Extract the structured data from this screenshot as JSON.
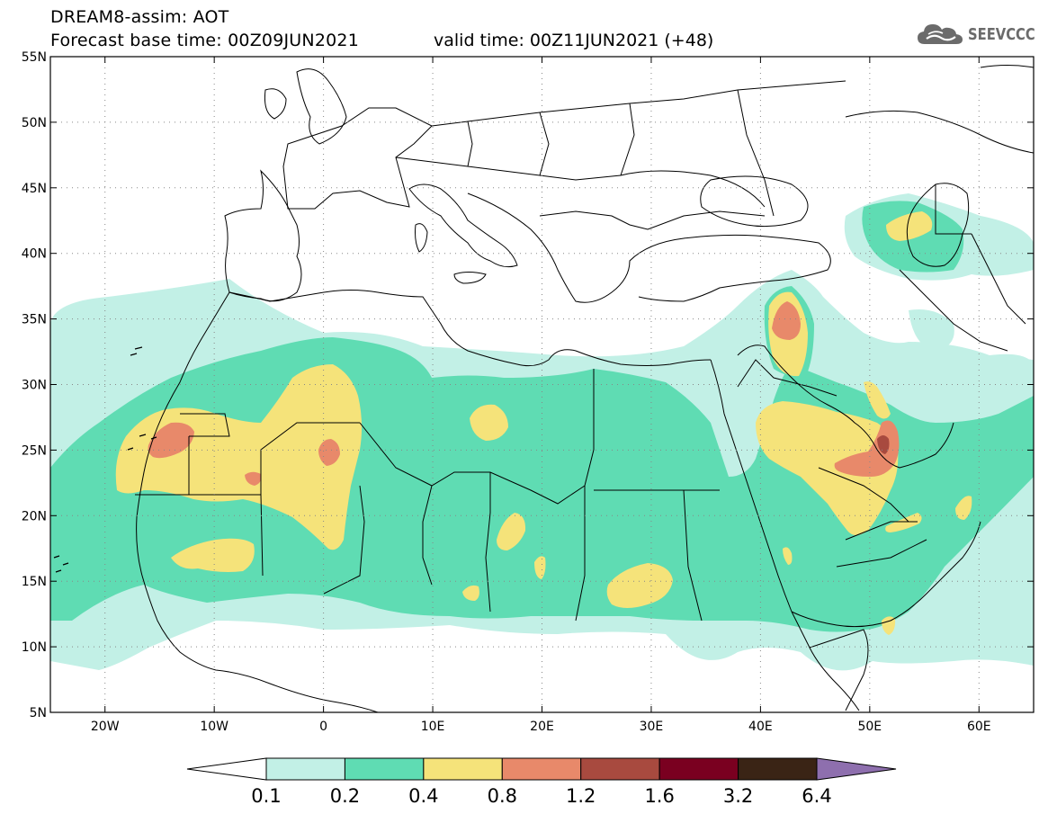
{
  "header": {
    "model_line": "DREAM8-assim: AOT",
    "base_time_line": "Forecast base time: 00Z09JUN2021",
    "valid_time_line": "valid time: 00Z11JUN2021 (+48)"
  },
  "logo": {
    "text": "SEEVCCC",
    "icon": "cloud-icon",
    "color": "#6b6b6b"
  },
  "map": {
    "lon_range": [
      -25,
      65
    ],
    "lat_range": [
      5,
      55
    ],
    "lat_ticks": [
      {
        "value": 55,
        "label": "55N"
      },
      {
        "value": 50,
        "label": "50N"
      },
      {
        "value": 45,
        "label": "45N"
      },
      {
        "value": 40,
        "label": "40N"
      },
      {
        "value": 35,
        "label": "35N"
      },
      {
        "value": 30,
        "label": "30N"
      },
      {
        "value": 25,
        "label": "25N"
      },
      {
        "value": 20,
        "label": "20N"
      },
      {
        "value": 15,
        "label": "15N"
      },
      {
        "value": 10,
        "label": "10N"
      },
      {
        "value": 5,
        "label": "5N"
      }
    ],
    "lon_ticks": [
      {
        "value": -20,
        "label": "20W"
      },
      {
        "value": -10,
        "label": "10W"
      },
      {
        "value": 0,
        "label": "0"
      },
      {
        "value": 10,
        "label": "10E"
      },
      {
        "value": 20,
        "label": "20E"
      },
      {
        "value": 30,
        "label": "30E"
      },
      {
        "value": 40,
        "label": "40E"
      },
      {
        "value": 50,
        "label": "50E"
      },
      {
        "value": 60,
        "label": "60E"
      }
    ],
    "grid": "dotted"
  },
  "colorbar": {
    "labels": [
      "0.1",
      "0.2",
      "0.4",
      "0.8",
      "1.2",
      "1.6",
      "3.2",
      "6.4"
    ],
    "colors": [
      "#ffffff",
      "#c2f0e6",
      "#5fdcb3",
      "#f5e37a",
      "#e8896a",
      "#a84a3f",
      "#7a0020",
      "#3a2415",
      "#8e6fae"
    ]
  }
}
